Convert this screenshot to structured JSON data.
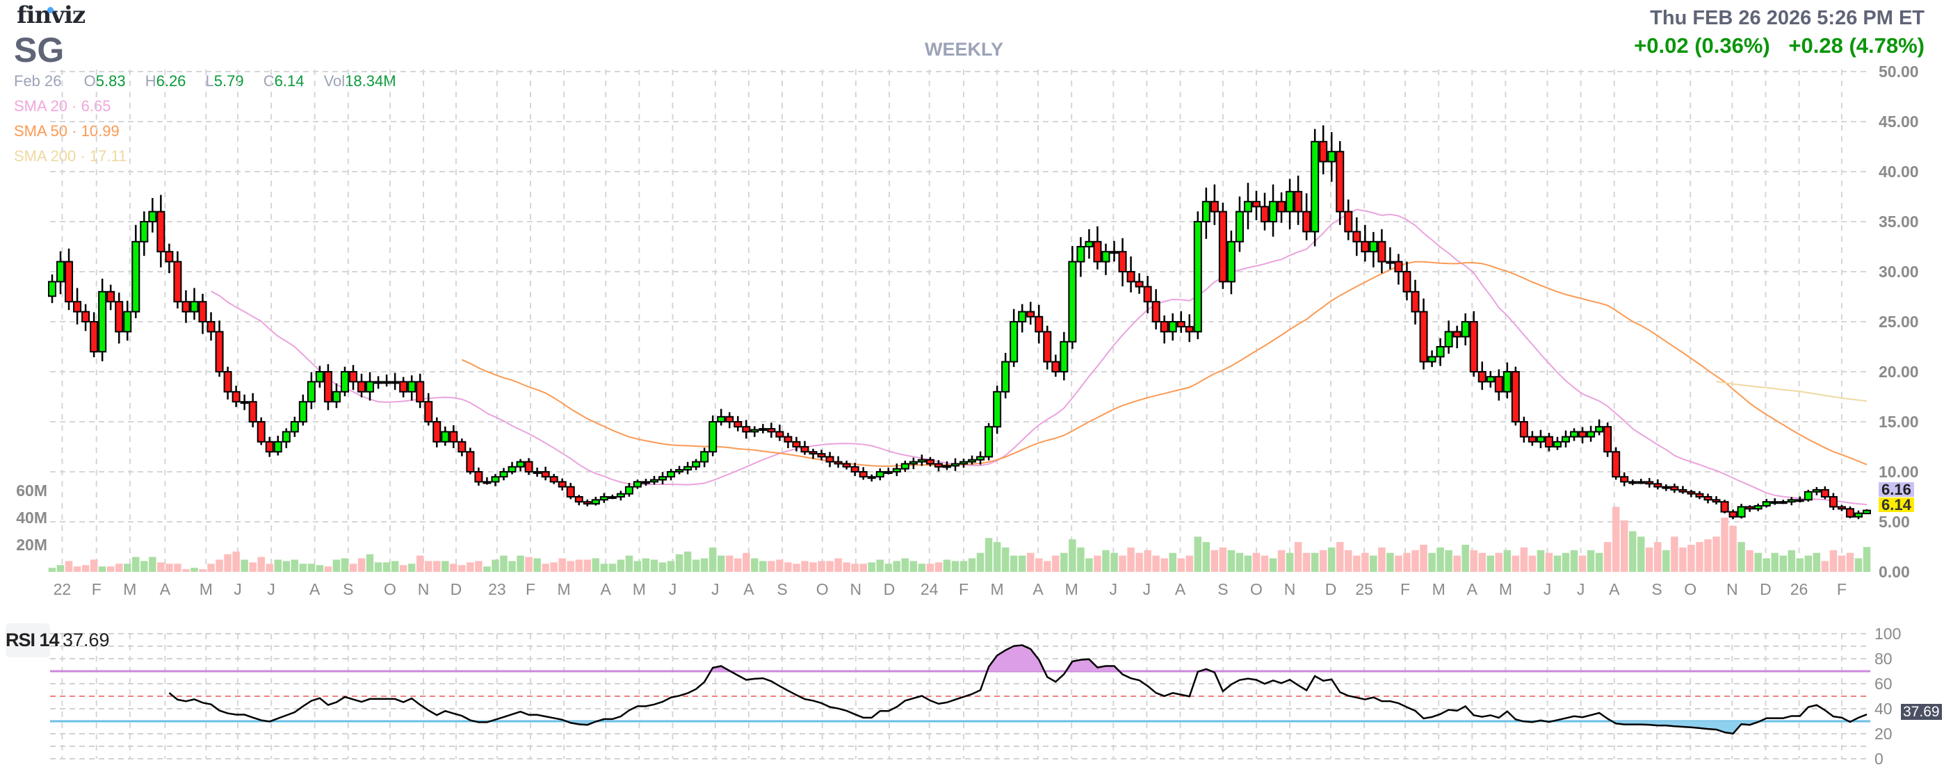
{
  "header": {
    "logo": "finviz",
    "ticker": "SG",
    "period": "WEEKLY",
    "datetime": "Thu FEB 26 2026 5:26 PM ET",
    "change_after_hours": "+0.02 (0.36%)",
    "change_day": "+0.28 (4.78%)"
  },
  "ohlc": {
    "date": "Feb 26",
    "o_label": "O",
    "o": "5.83",
    "h_label": "H",
    "h": "6.26",
    "l_label": "L",
    "l": "5.79",
    "c_label": "C",
    "c": "6.14",
    "vol_label": "Vol",
    "vol": "18.34M"
  },
  "sma": {
    "sma20_label": "SMA 20",
    "sma20": "6.65",
    "sma50_label": "SMA 50",
    "sma50": "10.99",
    "sma200_label": "SMA 200",
    "sma200": "17.11",
    "sep": "·"
  },
  "tags": {
    "sma20_tag": "6.16",
    "last_tag": "6.14",
    "rsi_tag": "37.69"
  },
  "rsi": {
    "label": "RSI 14",
    "value": "37.69"
  },
  "colors": {
    "up": "#00ee00",
    "down": "#ff1a1a",
    "vol_up": "#a9dea3",
    "vol_down": "#fdbdbd",
    "sma20": "#eaa3de",
    "sma50": "#fb9a53",
    "sma200": "#efd9a0",
    "rsi_over": "#cc88dd",
    "rsi_mid": "#f08080",
    "rsi_under": "#6bbfe6"
  },
  "chart_data": {
    "type": "candlestick",
    "title": "SG WEEKLY",
    "price_axis": {
      "min": 0,
      "max": 50,
      "step": 5,
      "labels": [
        "0.00",
        "5.00",
        "10.00",
        "15.00",
        "20.00",
        "25.00",
        "30.00",
        "35.00",
        "40.00",
        "45.00",
        "50.00"
      ]
    },
    "volume_axis": {
      "labels": [
        "20M",
        "40M",
        "60M"
      ],
      "values": [
        20,
        40,
        60
      ]
    },
    "rsi_axis": {
      "labels": [
        "0",
        "20",
        "40",
        "60",
        "80",
        "100"
      ],
      "values": [
        0,
        20,
        40,
        60,
        80,
        100
      ],
      "overbought": 70,
      "mid": 50,
      "oversold": 30
    },
    "months": [
      {
        "label": "22",
        "week": 1.2
      },
      {
        "label": "F",
        "week": 5.3
      },
      {
        "label": "M",
        "week": 9.3
      },
      {
        "label": "A",
        "week": 13.5
      },
      {
        "label": "M",
        "week": 18.4
      },
      {
        "label": "J",
        "week": 22.2
      },
      {
        "label": "J",
        "week": 26.2
      },
      {
        "label": "A",
        "week": 31.4
      },
      {
        "label": "S",
        "week": 35.4
      },
      {
        "label": "O",
        "week": 40.4
      },
      {
        "label": "N",
        "week": 44.4
      },
      {
        "label": "D",
        "week": 48.3
      },
      {
        "label": "23",
        "week": 53.2
      },
      {
        "label": "F",
        "week": 57.2
      },
      {
        "label": "M",
        "week": 61.2
      },
      {
        "label": "A",
        "week": 66.2
      },
      {
        "label": "M",
        "week": 70.2
      },
      {
        "label": "J",
        "week": 74.2
      },
      {
        "label": "J",
        "week": 79.3
      },
      {
        "label": "A",
        "week": 83.3
      },
      {
        "label": "S",
        "week": 87.3
      },
      {
        "label": "O",
        "week": 92.1
      },
      {
        "label": "N",
        "week": 96.1
      },
      {
        "label": "D",
        "week": 100.1
      },
      {
        "label": "24",
        "week": 104.9
      },
      {
        "label": "F",
        "week": 109
      },
      {
        "label": "M",
        "week": 113
      },
      {
        "label": "A",
        "week": 117.9
      },
      {
        "label": "M",
        "week": 121.9
      },
      {
        "label": "J",
        "week": 126.9
      },
      {
        "label": "J",
        "week": 130.9
      },
      {
        "label": "A",
        "week": 134.9
      },
      {
        "label": "S",
        "week": 140
      },
      {
        "label": "O",
        "week": 144
      },
      {
        "label": "N",
        "week": 148
      },
      {
        "label": "D",
        "week": 152.9
      },
      {
        "label": "25",
        "week": 156.9
      },
      {
        "label": "F",
        "week": 161.8
      },
      {
        "label": "M",
        "week": 165.8
      },
      {
        "label": "A",
        "week": 169.8
      },
      {
        "label": "M",
        "week": 173.8
      },
      {
        "label": "J",
        "week": 178.8
      },
      {
        "label": "J",
        "week": 182.8
      },
      {
        "label": "A",
        "week": 186.8
      },
      {
        "label": "S",
        "week": 191.9
      },
      {
        "label": "O",
        "week": 195.9
      },
      {
        "label": "N",
        "week": 200.9
      },
      {
        "label": "D",
        "week": 204.9
      },
      {
        "label": "26",
        "week": 208.9
      },
      {
        "label": "F",
        "week": 214
      }
    ],
    "close": [
      29,
      31,
      27,
      26,
      25,
      22,
      28,
      27,
      24,
      26,
      33,
      35,
      36,
      32,
      31,
      27,
      26,
      27,
      25,
      24,
      20,
      18,
      17,
      17,
      15,
      13,
      12,
      13,
      14,
      15,
      17,
      19,
      20,
      17,
      18,
      20,
      19,
      18,
      19,
      19,
      19,
      19,
      18,
      19,
      17,
      15,
      13,
      14,
      13,
      12,
      10,
      9,
      9,
      9.5,
      10,
      10.5,
      11,
      10,
      10,
      9.5,
      9,
      8.5,
      7.5,
      7,
      6.8,
      7.2,
      7.5,
      7.5,
      7.8,
      8.5,
      9,
      9,
      9.2,
      9.5,
      10,
      10.2,
      10.5,
      11,
      12,
      15,
      15.5,
      15,
      14.5,
      14,
      14.2,
      14.3,
      14,
      13.5,
      13,
      12.5,
      12,
      11.8,
      11.5,
      11,
      10.8,
      10.5,
      10,
      9.5,
      9.5,
      10,
      10,
      10.3,
      10.8,
      11,
      11.2,
      10.8,
      10.5,
      10.6,
      10.8,
      11,
      11.2,
      11.5,
      14.5,
      18,
      21,
      25,
      26,
      25.5,
      24,
      21,
      20,
      23,
      31,
      32.5,
      33,
      31,
      32,
      32,
      30,
      29,
      28.5,
      27,
      25,
      24,
      25,
      24.5,
      24,
      35,
      37,
      36,
      29,
      33,
      36,
      37,
      36.5,
      35,
      37,
      36,
      38,
      36,
      34,
      43,
      41,
      42,
      36,
      34,
      33,
      32,
      33,
      31,
      31,
      30,
      28,
      26,
      21,
      21.5,
      22.5,
      24,
      23.5,
      25,
      20,
      19,
      19.5,
      18,
      20,
      15,
      13.5,
      13,
      13.5,
      12.5,
      13,
      13.5,
      14,
      13.5,
      14,
      14.5,
      12,
      9.5,
      9,
      9,
      9,
      8.8,
      8.5,
      8.5,
      8.2,
      8,
      7.8,
      7.5,
      7.2,
      7,
      6,
      5.5,
      6.5,
      6.3,
      6.6,
      7,
      7,
      7,
      7.2,
      7.2,
      8,
      8.2,
      7.5,
      6.5,
      6.3,
      5.5,
      5.86,
      6.14
    ],
    "last_bar": {
      "open": 5.83,
      "high": 6.26,
      "low": 5.79,
      "close": 6.14
    },
    "volume_m": [
      3,
      5,
      8,
      4,
      5,
      9,
      4,
      4,
      6,
      6,
      11,
      8,
      11,
      7,
      6,
      6,
      2,
      3,
      2,
      6,
      9,
      13,
      15,
      9,
      7,
      11,
      6,
      9,
      8,
      9,
      6,
      6,
      5,
      4,
      9,
      10,
      6,
      10,
      13,
      7,
      7,
      8,
      5,
      6,
      12,
      8,
      8,
      8,
      6,
      5,
      7,
      8,
      4,
      9,
      12,
      8,
      12,
      11,
      10,
      6,
      7,
      10,
      8,
      9,
      9,
      10,
      6,
      6,
      9,
      12,
      8,
      10,
      9,
      7,
      8,
      13,
      15,
      9,
      10,
      18,
      12,
      12,
      10,
      14,
      10,
      8,
      8,
      9,
      7,
      6,
      8,
      7,
      8,
      8,
      10,
      7,
      6,
      6,
      7,
      9,
      6,
      8,
      10,
      8,
      6,
      6,
      7,
      9,
      8,
      8,
      10,
      14,
      25,
      22,
      18,
      12,
      12,
      14,
      10,
      8,
      12,
      14,
      24,
      18,
      10,
      12,
      16,
      14,
      12,
      18,
      14,
      16,
      12,
      10,
      14,
      10,
      12,
      26,
      22,
      16,
      18,
      16,
      14,
      12,
      14,
      12,
      10,
      16,
      14,
      22,
      14,
      14,
      16,
      18,
      22,
      16,
      12,
      14,
      12,
      18,
      14,
      12,
      14,
      16,
      20,
      14,
      18,
      16,
      12,
      20,
      16,
      14,
      12,
      14,
      16,
      12,
      18,
      12,
      16,
      14,
      12,
      14,
      16,
      12,
      16,
      14,
      22,
      48,
      38,
      30,
      26,
      18,
      22,
      16,
      26,
      18,
      20,
      22,
      24,
      26,
      40,
      34,
      22,
      16,
      14,
      10,
      14,
      12,
      16,
      10,
      12,
      14,
      8,
      16,
      12,
      14,
      10,
      18.34
    ]
  }
}
